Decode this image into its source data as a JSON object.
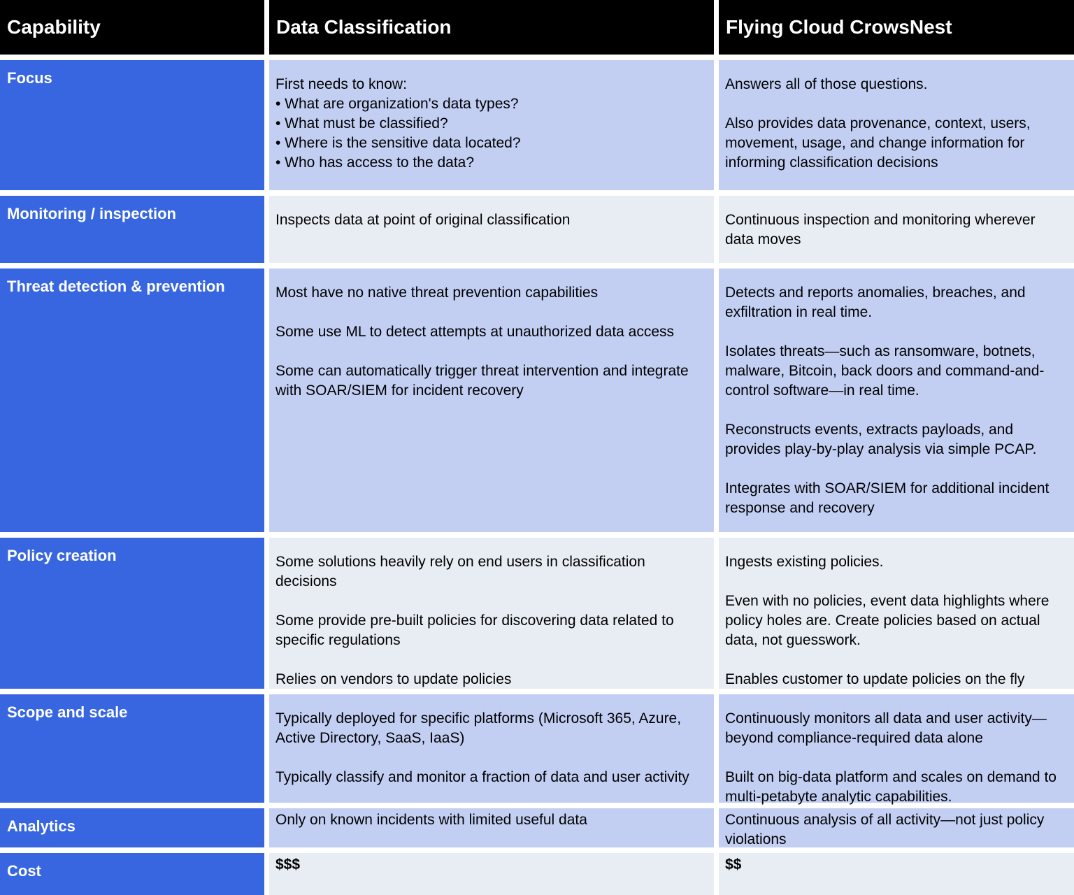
{
  "colors": {
    "header_bg": "#000000",
    "header_text": "#FFFFFF",
    "capability_col_bg": "#3766E0",
    "capability_col_text": "#FFFFFF",
    "row_blue_bg": "#C2CFF3",
    "row_gray_bg": "#E8EDF4",
    "body_text": "#000000",
    "grid_line": "#FFFFFF"
  },
  "header": {
    "capability": "Capability",
    "data_classification": "Data Classification",
    "flying_cloud_crowsnest": "Flying Cloud CrowsNest"
  },
  "rows": [
    {
      "capability": "Focus",
      "data_classification": "First needs to know:\n• What are organization's data types?\n• What must be classified?\n• Where is the sensitive data located?\n• Who has access to the data?",
      "flying_cloud_crowsnest": "Answers all of those questions.\n\nAlso provides data provenance, context, users, movement, usage, and change information for informing classification decisions"
    },
    {
      "capability": "Monitoring / inspection",
      "data_classification": "Inspects data at point of original classification",
      "flying_cloud_crowsnest": "Continuous inspection and monitoring wherever data moves"
    },
    {
      "capability": "Threat detection & prevention",
      "data_classification": "Most have no native threat prevention capabilities\n\nSome use ML to detect attempts at unauthorized data access\n\nSome can automatically trigger threat intervention and integrate with SOAR/SIEM for incident recovery",
      "flying_cloud_crowsnest": "Detects and reports anomalies, breaches, and exfiltration in real time.\n\nIsolates threats—such as ransomware, botnets, malware, Bitcoin, back doors and command-and-control software—in real time.\n\nReconstructs events, extracts payloads, and provides play-by-play analysis via simple PCAP.\n\nIntegrates with SOAR/SIEM for additional incident response and recovery"
    },
    {
      "capability": "Policy creation",
      "data_classification": "Some solutions heavily rely on end users in classification decisions\n\nSome provide pre-built policies for discovering data related to specific regulations\n\nRelies on vendors to update policies",
      "flying_cloud_crowsnest": "Ingests existing policies.\n\nEven with no policies, event data highlights where policy holes are. Create policies based on actual data, not guesswork.\n\nEnables customer to update policies on the fly"
    },
    {
      "capability": "Scope and scale",
      "data_classification": "Typically deployed for specific platforms (Microsoft 365, Azure, Active Directory, SaaS, IaaS)\n\nTypically classify and monitor a fraction of data and user activity",
      "flying_cloud_crowsnest": "Continuously monitors all data and user activity—beyond compliance-required data alone\n\nBuilt on big-data platform and scales on demand to multi-petabyte analytic capabilities."
    },
    {
      "capability": "Analytics",
      "data_classification": "Only on known incidents with limited useful data",
      "flying_cloud_crowsnest": "Continuous analysis of all activity—not just policy violations"
    },
    {
      "capability": "Cost",
      "data_classification": "$$$",
      "flying_cloud_crowsnest": "$$"
    }
  ]
}
